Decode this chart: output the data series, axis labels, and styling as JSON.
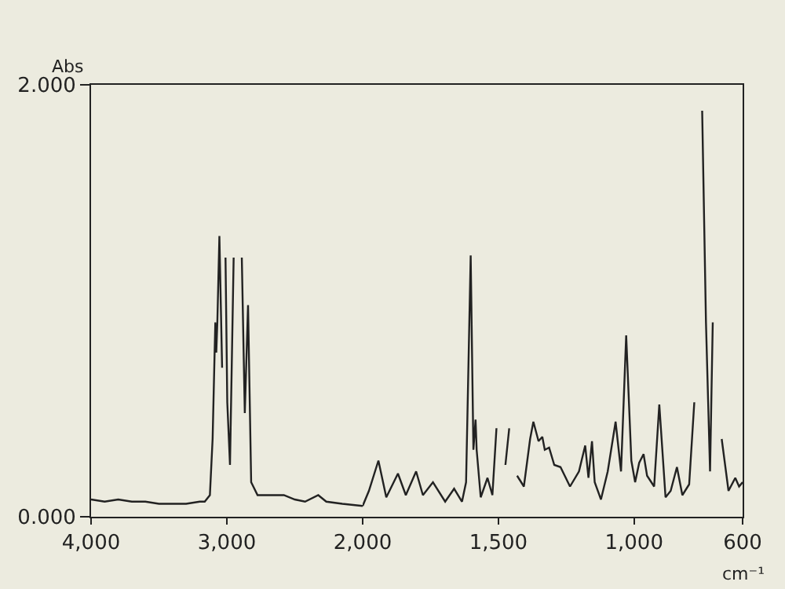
{
  "chart_data": [
    {
      "type": "line",
      "ylabel": "Abs",
      "x": [
        4000,
        3900,
        3800,
        3700,
        3600,
        3500,
        3400,
        3300,
        3200,
        3163,
        3125,
        3105,
        3085,
        3078,
        3070,
        3055,
        3035,
        3020,
        3016,
        3010,
        2997,
        2977,
        2950,
        2938,
        2899,
        2890,
        2868,
        2844,
        2821,
        2774,
        2680,
        2580,
        2500,
        2424,
        2327,
        2268,
        2150,
        2000
      ],
      "series": [
        {
          "color": "#222222",
          "values": [
            0.08,
            0.07,
            0.08,
            0.07,
            0.07,
            0.06,
            0.06,
            0.06,
            0.07,
            0.07,
            0.1,
            0.36,
            0.9,
            0.76,
            0.9,
            1.3,
            0.69,
            null,
            null,
            1.2,
            0.53,
            0.24,
            1.2,
            null,
            null,
            1.2,
            0.48,
            0.98,
            0.16,
            0.1,
            0.1,
            0.1,
            0.08,
            0.07,
            0.1,
            0.07,
            0.06,
            0.05
          ]
        }
      ],
      "xlim": [
        4000,
        2000
      ],
      "ylim": [
        0,
        2
      ],
      "xticks": [
        {
          "value": 4000,
          "label": "4,000"
        },
        {
          "value": 3000,
          "label": "3,000"
        }
      ],
      "yticks": [
        {
          "value": 0,
          "label": "0.000"
        },
        {
          "value": 2,
          "label": "2.000"
        }
      ],
      "grid": false,
      "legend": false,
      "marker": "none",
      "line_style": "solid"
    },
    {
      "type": "line",
      "xlabel": "cm⁻¹",
      "x": [
        2000,
        1977,
        1942,
        1913,
        1870,
        1841,
        1803,
        1778,
        1741,
        1696,
        1663,
        1634,
        1619,
        1602,
        1592,
        1584,
        1580,
        1565,
        1540,
        1522,
        1507,
        1495,
        1487,
        1474,
        1460,
        1453,
        1445,
        1431,
        1406,
        1383,
        1371,
        1352,
        1338,
        1329,
        1313,
        1294,
        1271,
        1236,
        1203,
        1180,
        1168,
        1155,
        1145,
        1122,
        1097,
        1068,
        1048,
        1029,
        1010,
        996,
        981,
        965,
        952,
        926,
        907,
        884,
        865,
        842,
        822,
        797,
        778,
        762,
        749,
        735,
        720,
        710,
        704,
        691,
        677,
        652,
        627,
        613,
        600
      ],
      "series": [
        {
          "color": "#222222",
          "values": [
            0.05,
            0.12,
            0.26,
            0.09,
            0.2,
            0.1,
            0.21,
            0.1,
            0.16,
            0.07,
            0.13,
            0.07,
            0.16,
            1.21,
            0.31,
            0.45,
            0.31,
            0.09,
            0.18,
            0.1,
            0.41,
            null,
            null,
            0.24,
            0.41,
            null,
            null,
            0.19,
            0.14,
            0.36,
            0.44,
            0.35,
            0.37,
            0.31,
            0.32,
            0.24,
            0.23,
            0.14,
            0.21,
            0.33,
            0.18,
            0.35,
            0.16,
            0.08,
            0.21,
            0.44,
            0.21,
            0.84,
            0.26,
            0.16,
            0.25,
            0.29,
            0.19,
            0.14,
            0.52,
            0.09,
            0.12,
            0.23,
            0.1,
            0.15,
            0.53,
            null,
            1.88,
            0.9,
            0.21,
            0.9,
            null,
            null,
            0.36,
            0.12,
            0.18,
            0.14,
            0.16
          ]
        }
      ],
      "xlim": [
        2000,
        600
      ],
      "ylim": [
        0,
        2
      ],
      "xticks": [
        {
          "value": 2000,
          "label": "2,000"
        },
        {
          "value": 1500,
          "label": "1,500"
        },
        {
          "value": 1000,
          "label": "1,000"
        },
        {
          "value": 600,
          "label": "600"
        }
      ],
      "tick_labels": "x",
      "grid": false,
      "legend": false,
      "marker": "none",
      "line_style": "solid"
    }
  ]
}
